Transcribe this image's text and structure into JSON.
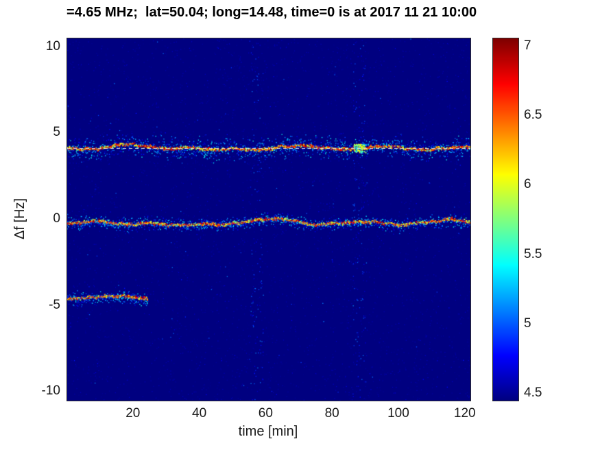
{
  "chart_data": {
    "type": "heatmap",
    "title": "=4.65 MHz;  lat=50.04; long=14.48, time=0 is at 2017 11 21 10:00",
    "xlabel": "time [min]",
    "ylabel": "Δf [Hz]",
    "xlim": [
      0,
      121.5
    ],
    "ylim": [
      -10.5,
      10.5
    ],
    "xticks": [
      20,
      40,
      60,
      80,
      100,
      120
    ],
    "yticks": [
      10,
      5,
      0,
      -5,
      -10
    ],
    "grid": false,
    "colormap": "jet",
    "colorbar": {
      "min": 4.45,
      "max": 7.06,
      "ticks": [
        7,
        6.5,
        6,
        5.5,
        5,
        4.5
      ],
      "position": "right"
    },
    "background_value": 4.45,
    "dashed_reference_line_y": 4.15,
    "noise_columns": [
      57,
      88
    ],
    "traces": [
      {
        "name": "upper-doppler-trace",
        "y_center": 4.2,
        "t_start": 0,
        "t_end": 121.5,
        "wiggle": 0.25,
        "fuzz": 0.8,
        "burst_t": 88
      },
      {
        "name": "carrier-doppler-trace",
        "y_center": -0.2,
        "t_start": 0,
        "t_end": 121.5,
        "wiggle": 0.3,
        "fuzz": 0.45
      },
      {
        "name": "lower-doppler-trace",
        "y_center": -4.55,
        "t_start": 0,
        "t_end": 24,
        "wiggle": 0.2,
        "fuzz": 0.5
      }
    ]
  }
}
